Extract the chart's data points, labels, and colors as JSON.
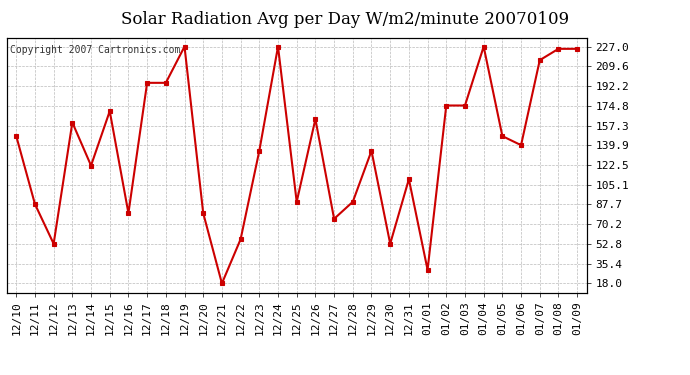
{
  "title": "Solar Radiation Avg per Day W/m2/minute 20070109",
  "copyright_text": "Copyright 2007 Cartronics.com",
  "labels": [
    "12/10",
    "12/11",
    "12/12",
    "12/13",
    "12/14",
    "12/15",
    "12/16",
    "12/17",
    "12/18",
    "12/19",
    "12/20",
    "12/21",
    "12/22",
    "12/23",
    "12/24",
    "12/25",
    "12/26",
    "12/27",
    "12/28",
    "12/29",
    "12/30",
    "12/31",
    "01/01",
    "01/02",
    "01/03",
    "01/04",
    "01/05",
    "01/06",
    "01/07",
    "01/08",
    "01/09"
  ],
  "values": [
    148.0,
    88.0,
    53.0,
    160.0,
    122.0,
    170.0,
    80.0,
    195.0,
    195.0,
    227.0,
    80.0,
    18.0,
    57.0,
    135.0,
    227.0,
    90.0,
    163.0,
    75.0,
    90.0,
    135.0,
    53.0,
    110.0,
    30.0,
    175.0,
    175.0,
    227.0,
    148.0,
    140.0,
    215.0,
    225.0,
    225.0
  ],
  "line_color": "#cc0000",
  "marker_color": "#cc0000",
  "background_color": "#ffffff",
  "plot_bg_color": "#ffffff",
  "grid_color": "#bbbbbb",
  "title_fontsize": 12,
  "tick_fontsize": 8,
  "copyright_fontsize": 7,
  "yticks": [
    18.0,
    35.4,
    52.8,
    70.2,
    87.7,
    105.1,
    122.5,
    139.9,
    157.3,
    174.8,
    192.2,
    209.6,
    227.0
  ],
  "ylim_min": 10.0,
  "ylim_max": 235.0
}
